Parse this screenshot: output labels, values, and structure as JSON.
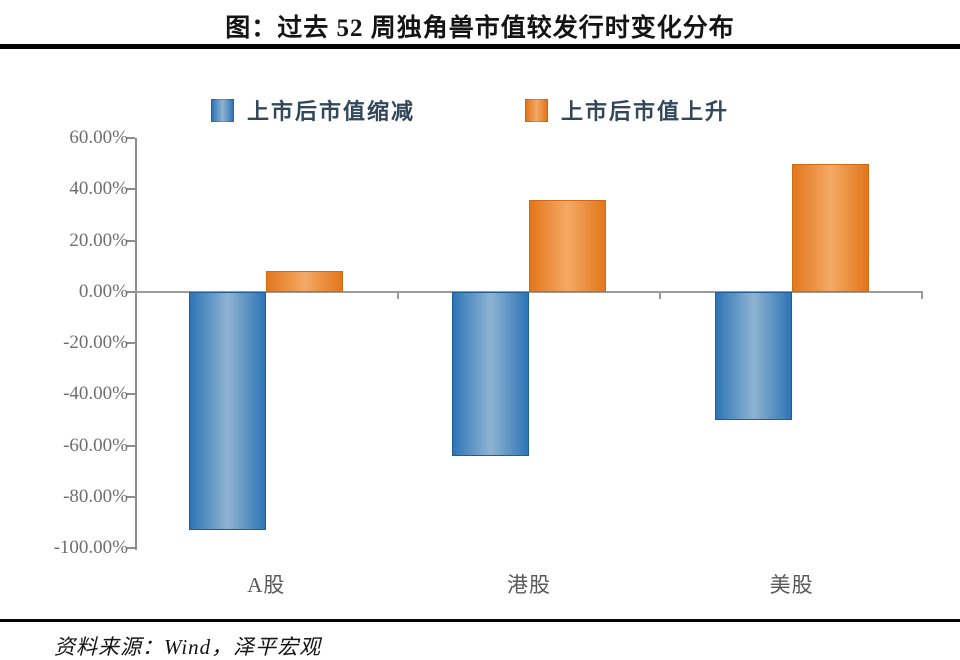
{
  "page": {
    "title": "图：过去 52 周独角兽市值较发行时变化分布",
    "source": "资料来源：Wind，泽平宏观"
  },
  "chart_data": {
    "type": "bar",
    "title": "图：过去 52 周独角兽市值较发行时变化分布",
    "categories": [
      "A股",
      "港股",
      "美股"
    ],
    "series": [
      {
        "key": "decline",
        "name": "上市后市值缩减",
        "color": "#2e75b6",
        "color_light": "#8fb3d2",
        "border_color": "#1f5e97",
        "values": [
          -93,
          -64,
          -50
        ]
      },
      {
        "key": "rise",
        "name": "上市后市值上升",
        "color": "#e2761b",
        "color_light": "#f4a966",
        "border_color": "#cf6a15",
        "values": [
          8,
          36,
          50
        ]
      }
    ],
    "unit": "percent",
    "ylim": [
      -100,
      60
    ],
    "yticks": [
      {
        "value": 60,
        "label": "60.00%"
      },
      {
        "value": 40,
        "label": "40.00%"
      },
      {
        "value": 20,
        "label": "20.00%"
      },
      {
        "value": 0,
        "label": "0.00%"
      },
      {
        "value": -20,
        "label": "-20.00%"
      },
      {
        "value": -40,
        "label": "-40.00%"
      },
      {
        "value": -60,
        "label": "-60.00%"
      },
      {
        "value": -80,
        "label": "-80.00%"
      },
      {
        "value": -100,
        "label": "-100.00%"
      }
    ],
    "legend_position": "top",
    "grid": false,
    "axis_color": "#8c8c8c",
    "label_color": "#6e6e6e"
  }
}
